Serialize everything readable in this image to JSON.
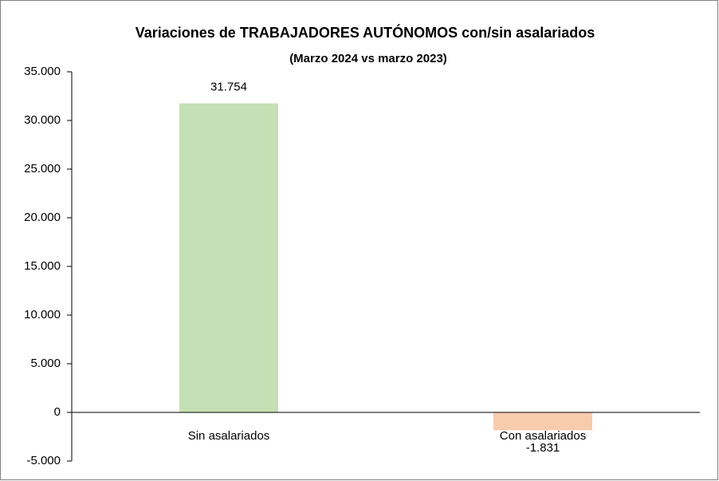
{
  "chart_data": {
    "type": "bar",
    "title": "Variaciones de TRABAJADORES AUTÓNOMOS con/sin asalariados",
    "subtitle": "(Marzo 2024 vs marzo 2023)",
    "categories": [
      "Sin asalariados",
      "Con asalariados"
    ],
    "values": [
      31754,
      -1831
    ],
    "value_labels": [
      "31.754",
      "-1.831"
    ],
    "colors": [
      "#c5e0b4",
      "#f8cbad"
    ],
    "ylim": [
      -5000,
      35000
    ],
    "yticks": [
      {
        "value": -5000,
        "label": "-5.000"
      },
      0,
      {
        "value": 5000,
        "label": "5.000"
      },
      {
        "value": 10000,
        "label": "10.000"
      },
      {
        "value": 15000,
        "label": "15.000"
      },
      {
        "value": 20000,
        "label": "20.000"
      },
      {
        "value": 25000,
        "label": "25.000"
      },
      {
        "value": 30000,
        "label": "30.000"
      },
      {
        "value": 35000,
        "label": "35.000"
      }
    ],
    "grid": false
  }
}
